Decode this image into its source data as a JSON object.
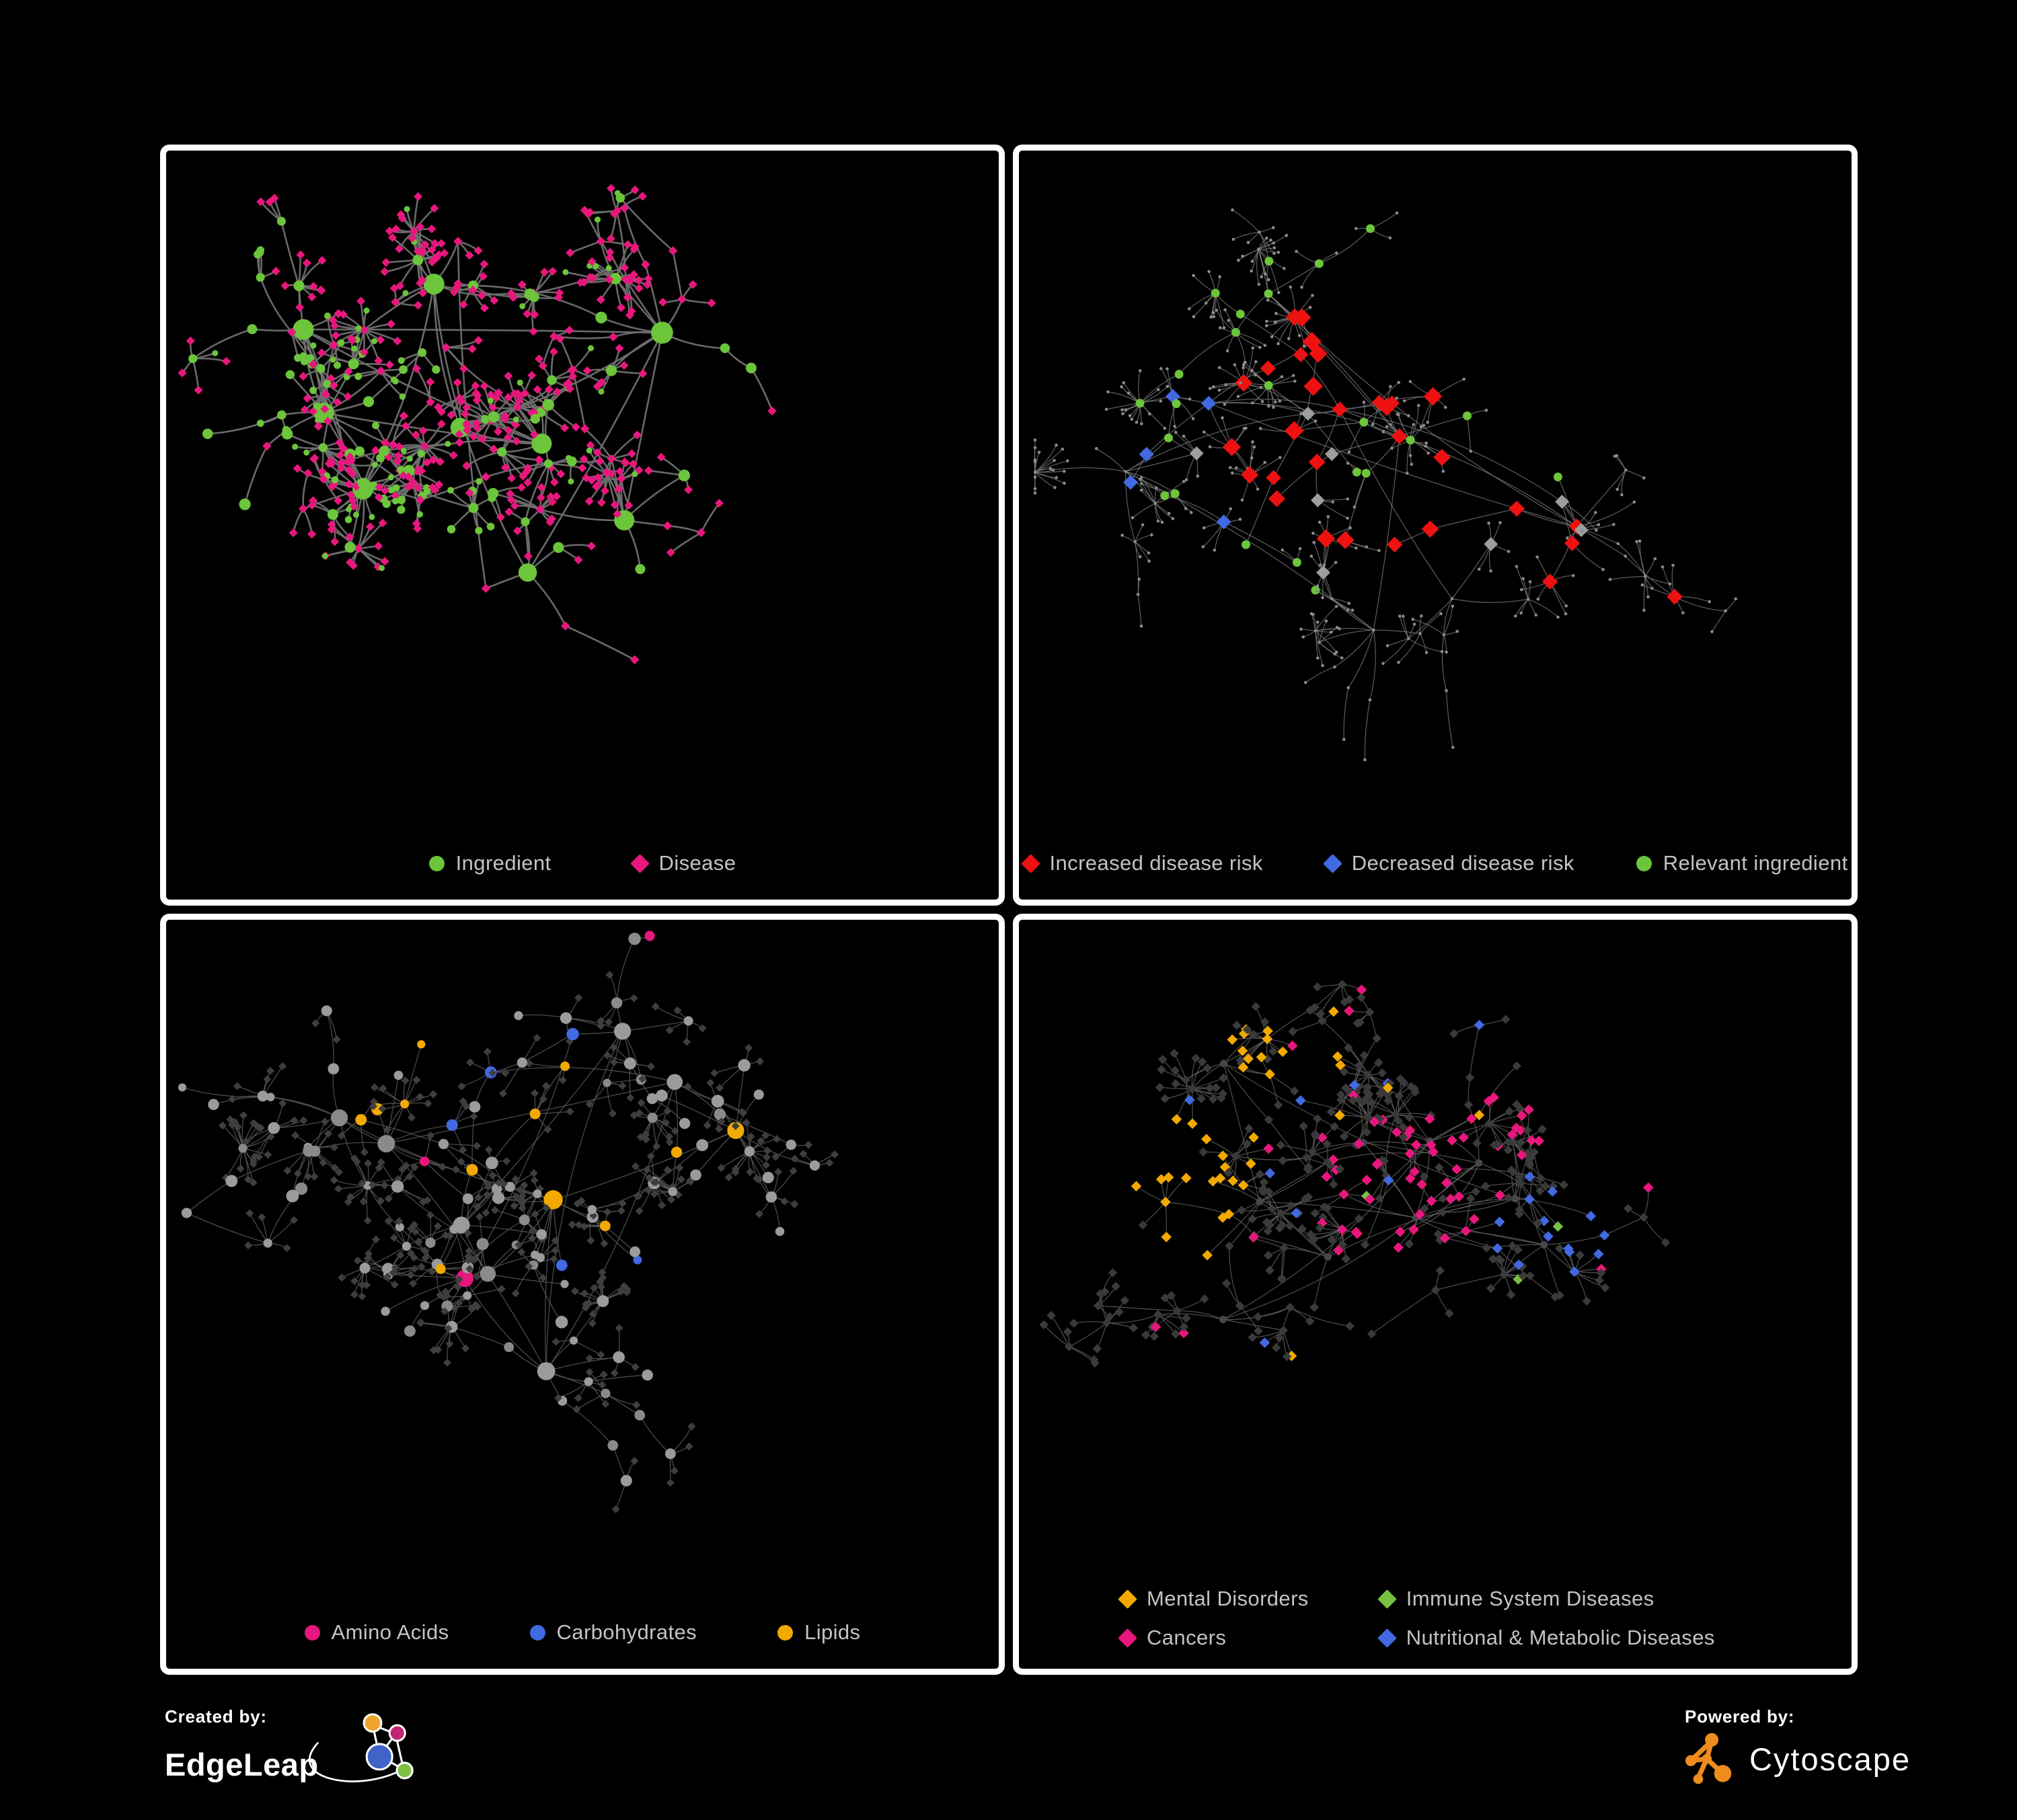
{
  "app": {
    "background_color": "#000000",
    "panel_border_color": "#ffffff",
    "legend_text_color": "#c3c3c3"
  },
  "footer": {
    "created_by_label": "Created by:",
    "edgeleap_name": "EdgeLeap",
    "powered_by_label": "Powered by:",
    "cytoscape_name": "Cytoscape",
    "edgeleap_logo_colors": {
      "orange": "#F0A32A",
      "magenta": "#C52373",
      "blue": "#3F63C8",
      "green": "#7DC242"
    },
    "cytoscape_logo_color": "#EE8C1E"
  },
  "panels": [
    {
      "legend": [
        {
          "label": "Ingredient",
          "shape": "circle",
          "color": "#6CC53A"
        },
        {
          "label": "Disease",
          "shape": "diamond",
          "color": "#E8177D"
        }
      ]
    },
    {
      "legend": [
        {
          "label": "Increased disease risk",
          "shape": "diamond",
          "color": "#EE1111"
        },
        {
          "label": "Decreased disease risk",
          "shape": "diamond",
          "color": "#4169E1"
        },
        {
          "label": "Relevant ingredient",
          "shape": "circle",
          "color": "#6CC53A"
        }
      ]
    },
    {
      "legend": [
        {
          "label": "Amino Acids",
          "shape": "circle",
          "color": "#E8177D"
        },
        {
          "label": "Carbohydrates",
          "shape": "circle",
          "color": "#4169E1"
        },
        {
          "label": "Lipids",
          "shape": "circle",
          "color": "#F2A900"
        }
      ]
    },
    {
      "legend": [
        {
          "label": "Mental Disorders",
          "shape": "diamond",
          "color": "#F2A900"
        },
        {
          "label": "Immune System Diseases",
          "shape": "diamond",
          "color": "#76C043"
        },
        {
          "label": "Cancers",
          "shape": "diamond",
          "color": "#E8177D"
        },
        {
          "label": "Nutritional & Metabolic Diseases",
          "shape": "diamond",
          "color": "#4169E1"
        }
      ]
    }
  ],
  "chart_data": [
    {
      "type": "network",
      "panel": "top-left",
      "description": "Ingredient-disease association network; gray curved edges",
      "edge_color": "#6f6f6f",
      "node_classes": [
        {
          "name": "Ingredient",
          "shape": "circle",
          "color": "#6CC53A",
          "approx_count": 150
        },
        {
          "name": "Disease",
          "shape": "diamond",
          "color": "#E8177D",
          "approx_count": 300
        }
      ]
    },
    {
      "type": "network",
      "panel": "top-right",
      "description": "Same network skeleton in thin gray with disease-risk highlights",
      "edge_color": "#7b7b7b",
      "node_classes": [
        {
          "name": "Increased disease risk",
          "shape": "diamond",
          "color": "#EE1111",
          "approx_count": 30
        },
        {
          "name": "Decreased disease risk",
          "shape": "diamond",
          "color": "#4169E1",
          "approx_count": 9
        },
        {
          "name": "Unclassified risk",
          "shape": "diamond",
          "color": "#9e9e9e",
          "approx_count": 8
        },
        {
          "name": "Relevant ingredient",
          "shape": "circle",
          "color": "#6CC53A",
          "approx_count": 28
        },
        {
          "name": "Other node",
          "shape": "circle",
          "color": "#8b8b8b",
          "approx_count": 400
        }
      ]
    },
    {
      "type": "network",
      "panel": "bottom-left",
      "description": "Ingredient network colored by macronutrient class; leaves are dark diamonds",
      "edge_color": "#5d5d5d",
      "node_classes": [
        {
          "name": "Amino Acids",
          "shape": "circle",
          "color": "#E8177D",
          "approx_count": 15
        },
        {
          "name": "Carbohydrates",
          "shape": "circle",
          "color": "#4169E1",
          "approx_count": 13
        },
        {
          "name": "Lipids",
          "shape": "circle",
          "color": "#F2A900",
          "approx_count": 55
        },
        {
          "name": "Other ingredient",
          "shape": "circle",
          "color": "#9b9b9b",
          "approx_count": 130
        },
        {
          "name": "Leaf node",
          "shape": "diamond",
          "color": "#3e3e3e",
          "approx_count": 300
        }
      ]
    },
    {
      "type": "network",
      "panel": "bottom-right",
      "description": "Disease network colored by disease category clusters",
      "edge_color": "#6e6e6e",
      "node_classes": [
        {
          "name": "Mental Disorders",
          "shape": "diamond",
          "color": "#F2A900",
          "approx_count": 85
        },
        {
          "name": "Immune System Diseases",
          "shape": "diamond",
          "color": "#76C043",
          "approx_count": 8
        },
        {
          "name": "Cancers",
          "shape": "diamond",
          "color": "#E8177D",
          "approx_count": 60
        },
        {
          "name": "Nutritional & Metabolic Diseases",
          "shape": "diamond",
          "color": "#4169E1",
          "approx_count": 70
        },
        {
          "name": "Other disease",
          "shape": "diamond",
          "color": "#3a3a3a",
          "approx_count": 230
        }
      ]
    }
  ]
}
